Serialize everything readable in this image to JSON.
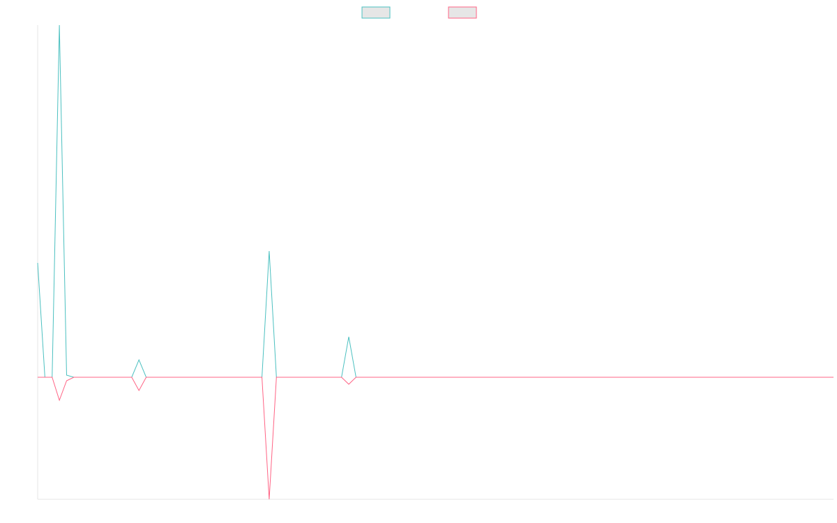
{
  "chart_data": {
    "type": "line",
    "title": "",
    "xlabel": "",
    "ylabel": "",
    "x": [
      0,
      1,
      2,
      3,
      4,
      5,
      6,
      7,
      8,
      9,
      10,
      11,
      12,
      13,
      14,
      15,
      16,
      17,
      18,
      19,
      20,
      21,
      22,
      23,
      24,
      25,
      26,
      27,
      28,
      29,
      30,
      31,
      32,
      33,
      34,
      35,
      36,
      37,
      38,
      39,
      40,
      41,
      42,
      43,
      44,
      45,
      46,
      47,
      48,
      49,
      50,
      51,
      52,
      53,
      54,
      55,
      56,
      57,
      58,
      59,
      60,
      61,
      62,
      63,
      64,
      65,
      66,
      67,
      68,
      69,
      70,
      71,
      72,
      73,
      74,
      75,
      76,
      77,
      78,
      79,
      80,
      81,
      82,
      83,
      84,
      85,
      86,
      87,
      88,
      89,
      90,
      91,
      92,
      93,
      94,
      95,
      96,
      97,
      98,
      99,
      100,
      101,
      102,
      103,
      104,
      105,
      106,
      107,
      108,
      109,
      110
    ],
    "xlim": [
      0,
      110
    ],
    "ylim": [
      -175,
      505
    ],
    "grid": false,
    "legend_position": "top-center",
    "series": [
      {
        "color": "#4bc0c0",
        "values": [
          164,
          0,
          0,
          505,
          3,
          0,
          0,
          0,
          0,
          0,
          0,
          0,
          0,
          0,
          25,
          0,
          0,
          0,
          0,
          0,
          0,
          0,
          0,
          0,
          0,
          0,
          0,
          0,
          0,
          0,
          0,
          0,
          181,
          0,
          0,
          0,
          0,
          0,
          0,
          0,
          0,
          0,
          0,
          58,
          0,
          0,
          0,
          0,
          0,
          0,
          0,
          0,
          0,
          0,
          0,
          0,
          0,
          0,
          0,
          0,
          0,
          0,
          0,
          0,
          0,
          0,
          0,
          0,
          0,
          0,
          0,
          0,
          0,
          0,
          0,
          0,
          0,
          0,
          0,
          0,
          0,
          0,
          0,
          0,
          0,
          0,
          0,
          0,
          0,
          0,
          0,
          0,
          0,
          0,
          0,
          0,
          0,
          0,
          0,
          0,
          0,
          0,
          0,
          0,
          0,
          0,
          0,
          0,
          0,
          0,
          0
        ]
      },
      {
        "color": "#ff6384",
        "values": [
          0,
          0,
          0,
          -33,
          -5,
          0,
          0,
          0,
          0,
          0,
          0,
          0,
          0,
          0,
          -19,
          0,
          0,
          0,
          0,
          0,
          0,
          0,
          0,
          0,
          0,
          0,
          0,
          0,
          0,
          0,
          0,
          0,
          -175,
          0,
          0,
          0,
          0,
          0,
          0,
          0,
          0,
          0,
          0,
          -10,
          0,
          0,
          0,
          0,
          0,
          0,
          0,
          0,
          0,
          0,
          0,
          0,
          0,
          0,
          0,
          0,
          0,
          0,
          0,
          0,
          0,
          0,
          0,
          0,
          0,
          0,
          0,
          0,
          0,
          0,
          0,
          0,
          0,
          0,
          0,
          0,
          0,
          0,
          0,
          0,
          0,
          0,
          0,
          0,
          0,
          0,
          0,
          0,
          0,
          0,
          0,
          0,
          0,
          0,
          0,
          0,
          0,
          0,
          0,
          0,
          0,
          0,
          0,
          0,
          0,
          0,
          0
        ]
      }
    ]
  }
}
